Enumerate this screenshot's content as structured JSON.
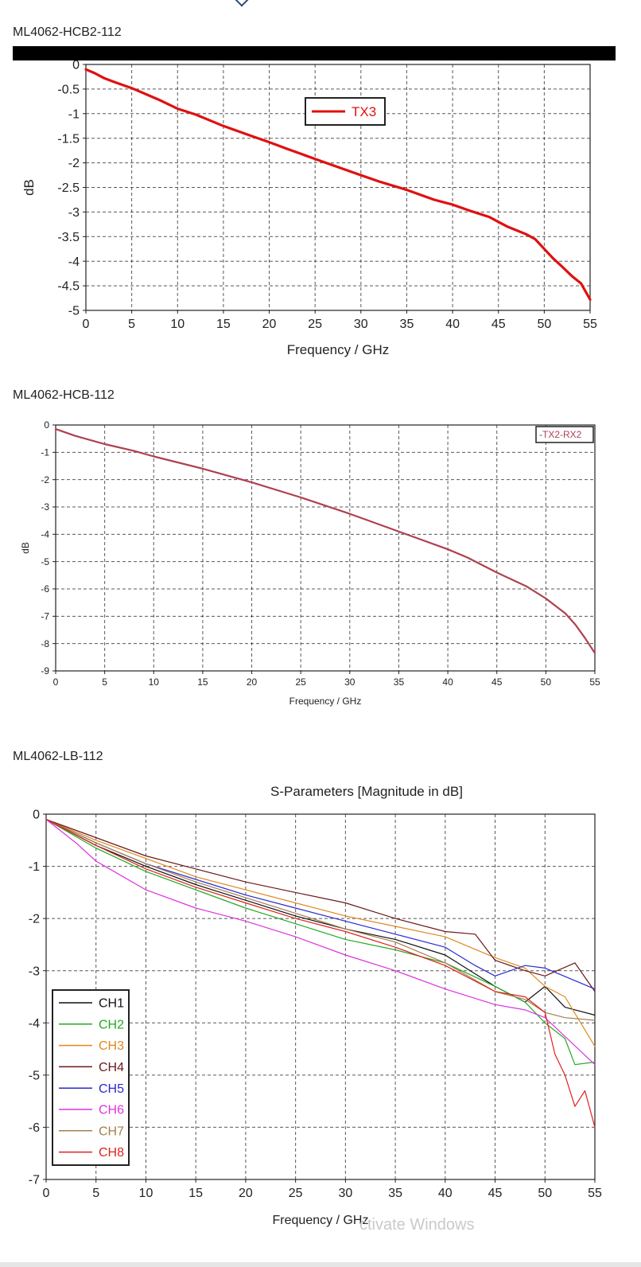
{
  "page": {
    "watermark": "ctivate Windows"
  },
  "chart_data": [
    {
      "id": "c1",
      "section_title": "ML4062-HCB2-112",
      "type": "line",
      "title": "",
      "xlabel": "Frequency / GHz",
      "ylabel": "dB",
      "xlim": [
        0,
        55
      ],
      "ylim": [
        -5,
        0
      ],
      "xticks": [
        0,
        5,
        10,
        15,
        20,
        25,
        30,
        35,
        40,
        45,
        50,
        55
      ],
      "yticks": [
        0,
        -0.5,
        -1,
        -1.5,
        -2,
        -2.5,
        -3,
        -3.5,
        -4,
        -4.5,
        -5
      ],
      "grid": true,
      "legend_position": "top-center",
      "series": [
        {
          "name": "TX3",
          "color": "#e01010",
          "x": [
            0,
            1,
            2,
            3,
            5,
            8,
            10,
            12,
            15,
            18,
            20,
            22,
            25,
            28,
            30,
            32,
            35,
            38,
            40,
            42,
            44,
            45,
            46,
            48,
            49,
            50,
            51,
            52,
            53,
            54,
            55
          ],
          "y": [
            -0.1,
            -0.18,
            -0.28,
            -0.35,
            -0.48,
            -0.72,
            -0.9,
            -1.02,
            -1.25,
            -1.45,
            -1.58,
            -1.72,
            -1.92,
            -2.12,
            -2.25,
            -2.38,
            -2.55,
            -2.75,
            -2.85,
            -2.98,
            -3.1,
            -3.2,
            -3.3,
            -3.45,
            -3.55,
            -3.75,
            -3.95,
            -4.12,
            -4.3,
            -4.45,
            -4.78
          ]
        }
      ]
    },
    {
      "id": "c2",
      "section_title": "ML4062-HCB-112",
      "type": "line",
      "title": "",
      "xlabel": "Frequency / GHz",
      "ylabel": "dB",
      "xlim": [
        0,
        55
      ],
      "ylim": [
        -9,
        0
      ],
      "xticks": [
        0,
        5,
        10,
        15,
        20,
        25,
        30,
        35,
        40,
        45,
        50,
        55
      ],
      "yticks": [
        0,
        -1,
        -2,
        -3,
        -4,
        -5,
        -6,
        -7,
        -8,
        -9
      ],
      "grid": true,
      "legend_position": "top-right",
      "series": [
        {
          "name": "TX2-RX2",
          "color": "#b04050",
          "x": [
            0,
            2,
            5,
            8,
            10,
            15,
            20,
            25,
            30,
            35,
            40,
            42,
            45,
            48,
            50,
            52,
            53,
            54,
            55
          ],
          "y": [
            -0.15,
            -0.4,
            -0.7,
            -0.95,
            -1.15,
            -1.6,
            -2.1,
            -2.65,
            -3.25,
            -3.9,
            -4.55,
            -4.85,
            -5.4,
            -5.9,
            -6.35,
            -6.9,
            -7.3,
            -7.8,
            -8.35
          ]
        }
      ]
    },
    {
      "id": "c3",
      "section_title": "ML4062-LB-112",
      "type": "line",
      "title": "S-Parameters [Magnitude in dB]",
      "xlabel": "Frequency / GHz",
      "ylabel": "",
      "xlim": [
        0,
        55
      ],
      "ylim": [
        -7,
        0
      ],
      "xticks": [
        0,
        5,
        10,
        15,
        20,
        25,
        30,
        35,
        40,
        45,
        50,
        55
      ],
      "yticks": [
        0,
        -1,
        -2,
        -3,
        -4,
        -5,
        -6,
        -7
      ],
      "grid": true,
      "legend_position": "bottom-left",
      "series": [
        {
          "name": "CH1",
          "color": "#111111",
          "x": [
            0,
            5,
            10,
            15,
            20,
            25,
            30,
            35,
            40,
            45,
            48,
            50,
            52,
            55
          ],
          "y": [
            -0.1,
            -0.6,
            -1.0,
            -1.35,
            -1.65,
            -1.95,
            -2.2,
            -2.4,
            -2.7,
            -3.3,
            -3.6,
            -3.3,
            -3.7,
            -3.85
          ]
        },
        {
          "name": "CH2",
          "color": "#22aa22",
          "x": [
            0,
            5,
            10,
            15,
            20,
            25,
            30,
            35,
            40,
            45,
            48,
            50,
            52,
            53,
            55
          ],
          "y": [
            -0.1,
            -0.65,
            -1.1,
            -1.45,
            -1.8,
            -2.1,
            -2.4,
            -2.6,
            -2.85,
            -3.3,
            -3.6,
            -4.0,
            -4.3,
            -4.8,
            -4.75
          ]
        },
        {
          "name": "CH3",
          "color": "#e08820",
          "x": [
            0,
            5,
            10,
            15,
            20,
            25,
            30,
            35,
            40,
            45,
            48,
            50,
            52,
            55
          ],
          "y": [
            -0.1,
            -0.5,
            -0.85,
            -1.2,
            -1.45,
            -1.7,
            -1.95,
            -2.15,
            -2.35,
            -2.75,
            -2.95,
            -3.3,
            -3.5,
            -4.45
          ]
        },
        {
          "name": "CH4",
          "color": "#6b1a1a",
          "x": [
            0,
            5,
            10,
            15,
            20,
            25,
            30,
            35,
            40,
            43,
            45,
            48,
            50,
            53,
            55
          ],
          "y": [
            -0.1,
            -0.45,
            -0.8,
            -1.05,
            -1.3,
            -1.5,
            -1.7,
            -2.0,
            -2.25,
            -2.3,
            -2.8,
            -3.0,
            -3.1,
            -2.85,
            -3.4
          ]
        },
        {
          "name": "CH5",
          "color": "#2a2ad0",
          "x": [
            0,
            5,
            10,
            15,
            20,
            25,
            30,
            35,
            40,
            43,
            45,
            48,
            50,
            55
          ],
          "y": [
            -0.1,
            -0.55,
            -0.95,
            -1.25,
            -1.55,
            -1.8,
            -2.05,
            -2.3,
            -2.55,
            -2.9,
            -3.1,
            -2.9,
            -2.95,
            -3.35
          ]
        },
        {
          "name": "CH6",
          "color": "#dd33dd",
          "x": [
            0,
            3,
            5,
            10,
            15,
            20,
            25,
            30,
            35,
            40,
            45,
            48,
            50,
            55
          ],
          "y": [
            -0.1,
            -0.55,
            -0.9,
            -1.45,
            -1.8,
            -2.05,
            -2.35,
            -2.7,
            -3.0,
            -3.35,
            -3.65,
            -3.75,
            -3.9,
            -4.8
          ]
        },
        {
          "name": "CH7",
          "color": "#a08050",
          "x": [
            0,
            5,
            10,
            15,
            20,
            25,
            30,
            35,
            40,
            45,
            48,
            50,
            52,
            55
          ],
          "y": [
            -0.1,
            -0.55,
            -0.95,
            -1.3,
            -1.6,
            -1.9,
            -2.2,
            -2.45,
            -2.85,
            -3.4,
            -3.55,
            -3.8,
            -3.9,
            -3.95
          ]
        },
        {
          "name": "CH8",
          "color": "#e02020",
          "x": [
            0,
            5,
            10,
            15,
            20,
            25,
            30,
            35,
            40,
            45,
            48,
            50,
            51,
            52,
            53,
            54,
            55
          ],
          "y": [
            -0.1,
            -0.6,
            -1.05,
            -1.4,
            -1.7,
            -2.0,
            -2.25,
            -2.55,
            -2.9,
            -3.4,
            -3.5,
            -3.8,
            -4.6,
            -5.0,
            -5.6,
            -5.3,
            -6.0
          ]
        }
      ]
    }
  ]
}
